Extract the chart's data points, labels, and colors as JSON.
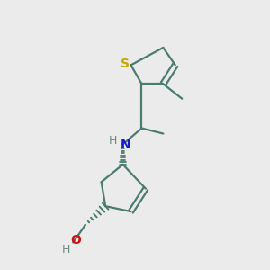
{
  "bg_color": "#ebebeb",
  "bond_color": "#4a7c6f",
  "sulfur_color": "#c8a800",
  "nitrogen_color": "#1a1acc",
  "oxygen_color": "#cc1111",
  "h_color": "#6a8a80",
  "lw": 1.6,
  "fig_w": 3.0,
  "fig_h": 3.0,
  "dpi": 100,
  "xlim": [
    0,
    10
  ],
  "ylim": [
    0,
    10
  ]
}
